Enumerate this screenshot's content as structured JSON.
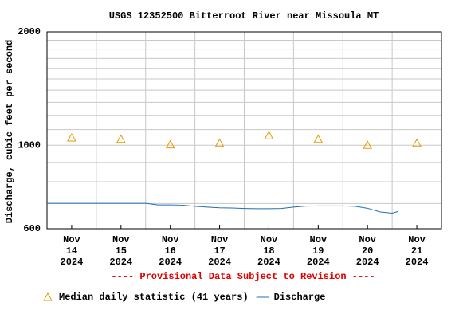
{
  "chart_data": {
    "type": "line",
    "title": "USGS 12352500 Bitterroot River near Missoula MT",
    "y_label": "Discharge, cubic feet per second",
    "annotation": "---- Provisional Data Subject to Revision ----",
    "log_y": true,
    "grid": true,
    "ylim": [
      600,
      2000
    ],
    "yticks": [
      600,
      1000,
      2000
    ],
    "y_minor_ticks": [
      700,
      800,
      900,
      1100,
      1200,
      1300,
      1400,
      1500,
      1600,
      1700,
      1800,
      1900
    ],
    "xlim": [
      "2024-11-14T00:00",
      "2024-11-22T00:00"
    ],
    "xticks": [
      {
        "value": "2024-11-14T12:00",
        "label": "Nov 14 2024"
      },
      {
        "value": "2024-11-15T12:00",
        "label": "Nov 15 2024"
      },
      {
        "value": "2024-11-16T12:00",
        "label": "Nov 16 2024"
      },
      {
        "value": "2024-11-17T12:00",
        "label": "Nov 17 2024"
      },
      {
        "value": "2024-11-18T12:00",
        "label": "Nov 18 2024"
      },
      {
        "value": "2024-11-19T12:00",
        "label": "Nov 19 2024"
      },
      {
        "value": "2024-11-20T12:00",
        "label": "Nov 20 2024"
      },
      {
        "value": "2024-11-21T12:00",
        "label": "Nov 21 2024"
      }
    ],
    "series": [
      {
        "name": "Median daily statistic (41 years)",
        "style": "triangle",
        "color": "#e89a00",
        "x": [
          "2024-11-14T12:00",
          "2024-11-15T12:00",
          "2024-11-16T12:00",
          "2024-11-17T12:00",
          "2024-11-18T12:00",
          "2024-11-19T12:00",
          "2024-11-20T12:00",
          "2024-11-21T12:00"
        ],
        "values": [
          1046,
          1037,
          1003,
          1012,
          1060,
          1037,
          1000,
          1012
        ]
      },
      {
        "name": "Discharge",
        "style": "line",
        "color": "#1f6fb4",
        "x": [
          "2024-11-14T00:00",
          "2024-11-14T06:00",
          "2024-11-14T12:00",
          "2024-11-14T18:00",
          "2024-11-15T00:00",
          "2024-11-15T06:00",
          "2024-11-15T12:00",
          "2024-11-15T18:00",
          "2024-11-16T00:00",
          "2024-11-16T06:00",
          "2024-11-16T12:00",
          "2024-11-16T18:00",
          "2024-11-17T00:00",
          "2024-11-17T06:00",
          "2024-11-17T12:00",
          "2024-11-17T18:00",
          "2024-11-18T00:00",
          "2024-11-18T06:00",
          "2024-11-18T12:00",
          "2024-11-18T18:00",
          "2024-11-19T00:00",
          "2024-11-19T06:00",
          "2024-11-19T12:00",
          "2024-11-19T18:00",
          "2024-11-20T00:00",
          "2024-11-20T06:00",
          "2024-11-20T12:00",
          "2024-11-20T18:00",
          "2024-11-21T00:00",
          "2024-11-21T03:00"
        ],
        "values": [
          701,
          701,
          701,
          701,
          701,
          701,
          701,
          701,
          701,
          694,
          694,
          693,
          688,
          685,
          682,
          681,
          679,
          678,
          678,
          679,
          685,
          689,
          690,
          690,
          690,
          688,
          680,
          665,
          660,
          667
        ]
      }
    ]
  }
}
